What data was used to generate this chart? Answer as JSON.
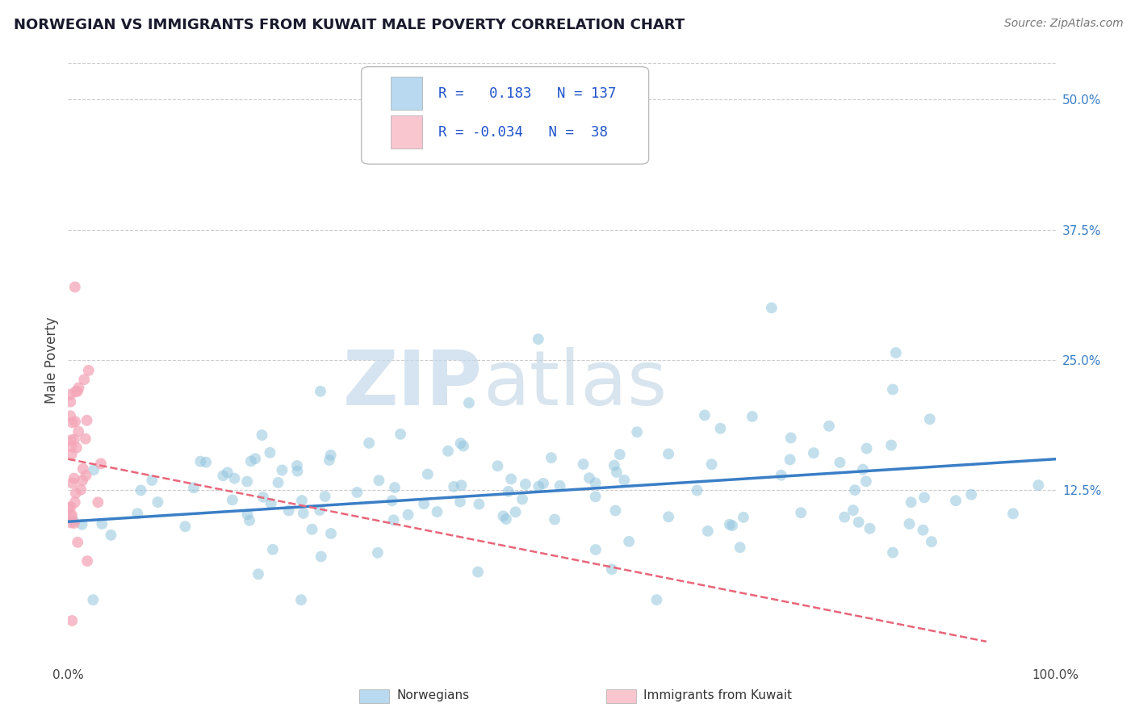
{
  "title": "NORWEGIAN VS IMMIGRANTS FROM KUWAIT MALE POVERTY CORRELATION CHART",
  "source": "Source: ZipAtlas.com",
  "ylabel_label": "Male Poverty",
  "right_yticks": [
    0.125,
    0.25,
    0.375,
    0.5
  ],
  "right_ytick_labels": [
    "12.5%",
    "25.0%",
    "37.5%",
    "50.0%"
  ],
  "xmin": 0.0,
  "xmax": 1.0,
  "ymin": -0.04,
  "ymax": 0.54,
  "norwegian_R": 0.183,
  "norwegian_N": 137,
  "kuwait_R": -0.034,
  "kuwait_N": 38,
  "norwegian_color": "#92c5de",
  "kuwait_color": "#f4a6b8",
  "norwegian_line_color": "#3a7ec6",
  "kuwait_line_color": "#e8667a",
  "legend_box_color_norwegian": "#b8d9ef",
  "legend_box_color_kuwait": "#f9c6d0",
  "watermark_zip": "ZIP",
  "watermark_atlas": "atlas",
  "watermark_color": "#ccdded",
  "background_color": "#ffffff",
  "grid_color": "#cccccc",
  "title_color": "#1a1a2e",
  "source_color": "#777777",
  "legend_text_color": "#2255cc",
  "dot_size": 100,
  "dot_alpha": 0.55,
  "seed": 7
}
